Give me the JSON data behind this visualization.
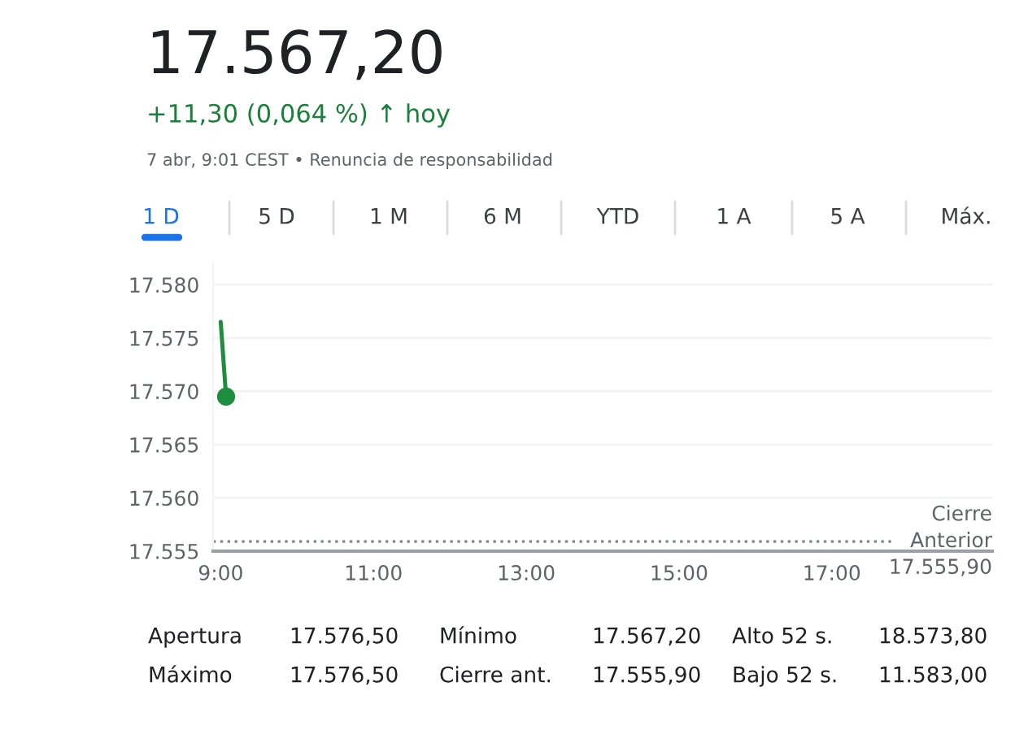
{
  "chart_data": {
    "type": "line",
    "title": "17.567,20",
    "subtitle": "+11,30 (0,064 %) ↑ hoy",
    "annotations": [
      "7 abr, 9:01 CEST • Renuncia de responsabilidad",
      "1 D",
      "5 D",
      "1 M",
      "6 M",
      "YTD",
      "1 A",
      "5 A",
      "Máx.",
      "Apertura",
      "17.576,50",
      "Mínimo",
      "17.567,20",
      "Alto 52 s.",
      "18.573,80",
      "Máximo",
      "17.576,50",
      "Cierre ant.",
      "17.555,90",
      "Bajo 52 s.",
      "11.583,00"
    ],
    "x": [
      9.0,
      9.07
    ],
    "series": [
      {
        "color": "#1e8e3e",
        "values": [
          17576.5,
          17569.5
        ]
      }
    ],
    "marker": "circle",
    "xlim": [
      8.9,
      19.1
    ],
    "xticks": [
      {
        "value": 9,
        "label": "9:00"
      },
      {
        "value": 11,
        "label": "11:00"
      },
      {
        "value": 13,
        "label": "13:00"
      },
      {
        "value": 15,
        "label": "15:00"
      },
      {
        "value": 17,
        "label": "17:00"
      }
    ],
    "ylim": [
      17555,
      17582
    ],
    "yticks": [
      {
        "value": 17555,
        "label": "17.555"
      },
      {
        "value": 17560,
        "label": "17.560"
      },
      {
        "value": 17565,
        "label": "17.565"
      },
      {
        "value": 17570,
        "label": "17.570"
      },
      {
        "value": 17575,
        "label": "17.575"
      },
      {
        "value": 17580,
        "label": "17.580"
      }
    ],
    "grid": "y",
    "ref_lines": [
      {
        "axis": "y",
        "value": 17555.9,
        "label": "Cierre\nAnterior\n17.555,90",
        "color": "#80868b",
        "line_style": "dotted"
      }
    ]
  }
}
